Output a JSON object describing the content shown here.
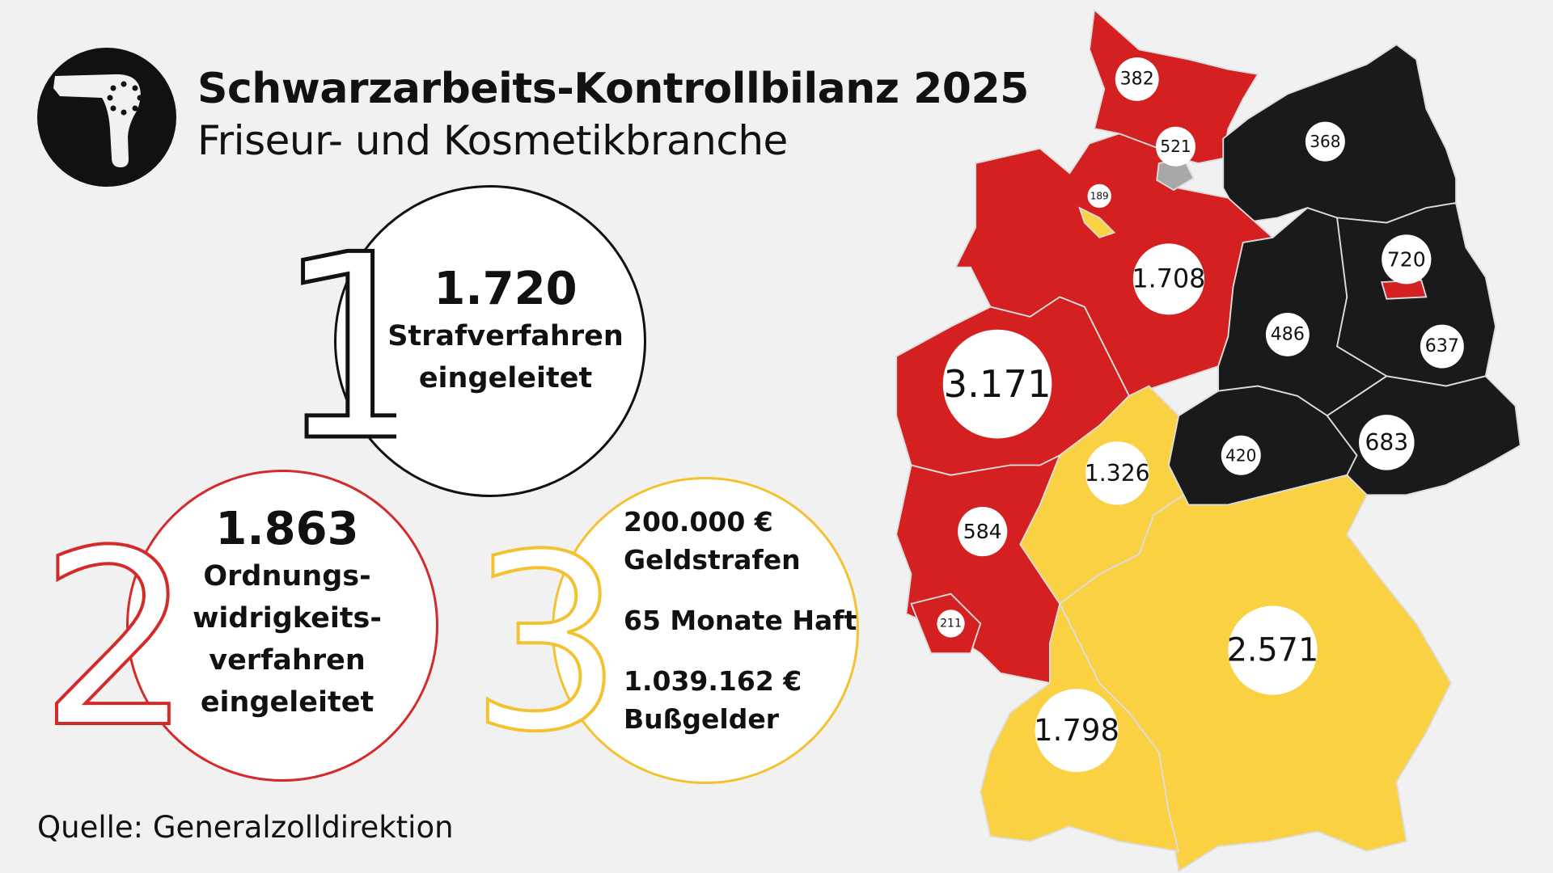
{
  "header": {
    "title": "Schwarzarbeits-Kontrollbilanz 2025",
    "subtitle": "Friseur- und Kosmetikbranche"
  },
  "stats": [
    {
      "index": "1",
      "value": "1.720",
      "label_lines": [
        "Strafverfahren",
        "eingeleitet"
      ],
      "color": "#111111"
    },
    {
      "index": "2",
      "value": "1.863",
      "label_lines": [
        "Ordnungs-",
        "widrigkeits-",
        "verfahren",
        "eingeleitet"
      ],
      "color": "#d42a2a"
    },
    {
      "index": "3",
      "lines": [
        "200.000 €",
        "Geldstrafen",
        "65 Monate Haft",
        "1.039.162 €",
        "Bußgelder"
      ],
      "color": "#f4c230"
    }
  ],
  "source": "Quelle: Generalzolldirektion",
  "map": {
    "colors": {
      "red": "#d42020",
      "black": "#1a1a1a",
      "yellow": "#f9d142",
      "gray": "#a8a8a8"
    },
    "regions": [
      {
        "id": "schleswig-holstein",
        "value": "382",
        "color": "red"
      },
      {
        "id": "hamburg",
        "value": "521",
        "color": "gray"
      },
      {
        "id": "bremen",
        "value": "189",
        "color": "yellow"
      },
      {
        "id": "mecklenburg-vorpommern",
        "value": "368",
        "color": "black"
      },
      {
        "id": "niedersachsen",
        "value": "1.708",
        "color": "red"
      },
      {
        "id": "berlin",
        "value": "720",
        "color": "red"
      },
      {
        "id": "sachsen-anhalt",
        "value": "486",
        "color": "black"
      },
      {
        "id": "brandenburg",
        "value": "637",
        "color": "black"
      },
      {
        "id": "nordrhein-westfalen",
        "value": "3.171",
        "color": "red"
      },
      {
        "id": "thueringen",
        "value": "420",
        "color": "black"
      },
      {
        "id": "sachsen",
        "value": "683",
        "color": "black"
      },
      {
        "id": "hessen",
        "value": "1.326",
        "color": "yellow"
      },
      {
        "id": "rheinland-pfalz",
        "value": "584",
        "color": "red"
      },
      {
        "id": "saarland",
        "value": "211",
        "color": "red"
      },
      {
        "id": "bayern",
        "value": "2.571",
        "color": "yellow"
      },
      {
        "id": "baden-wuerttemberg",
        "value": "1.798",
        "color": "yellow"
      }
    ]
  }
}
